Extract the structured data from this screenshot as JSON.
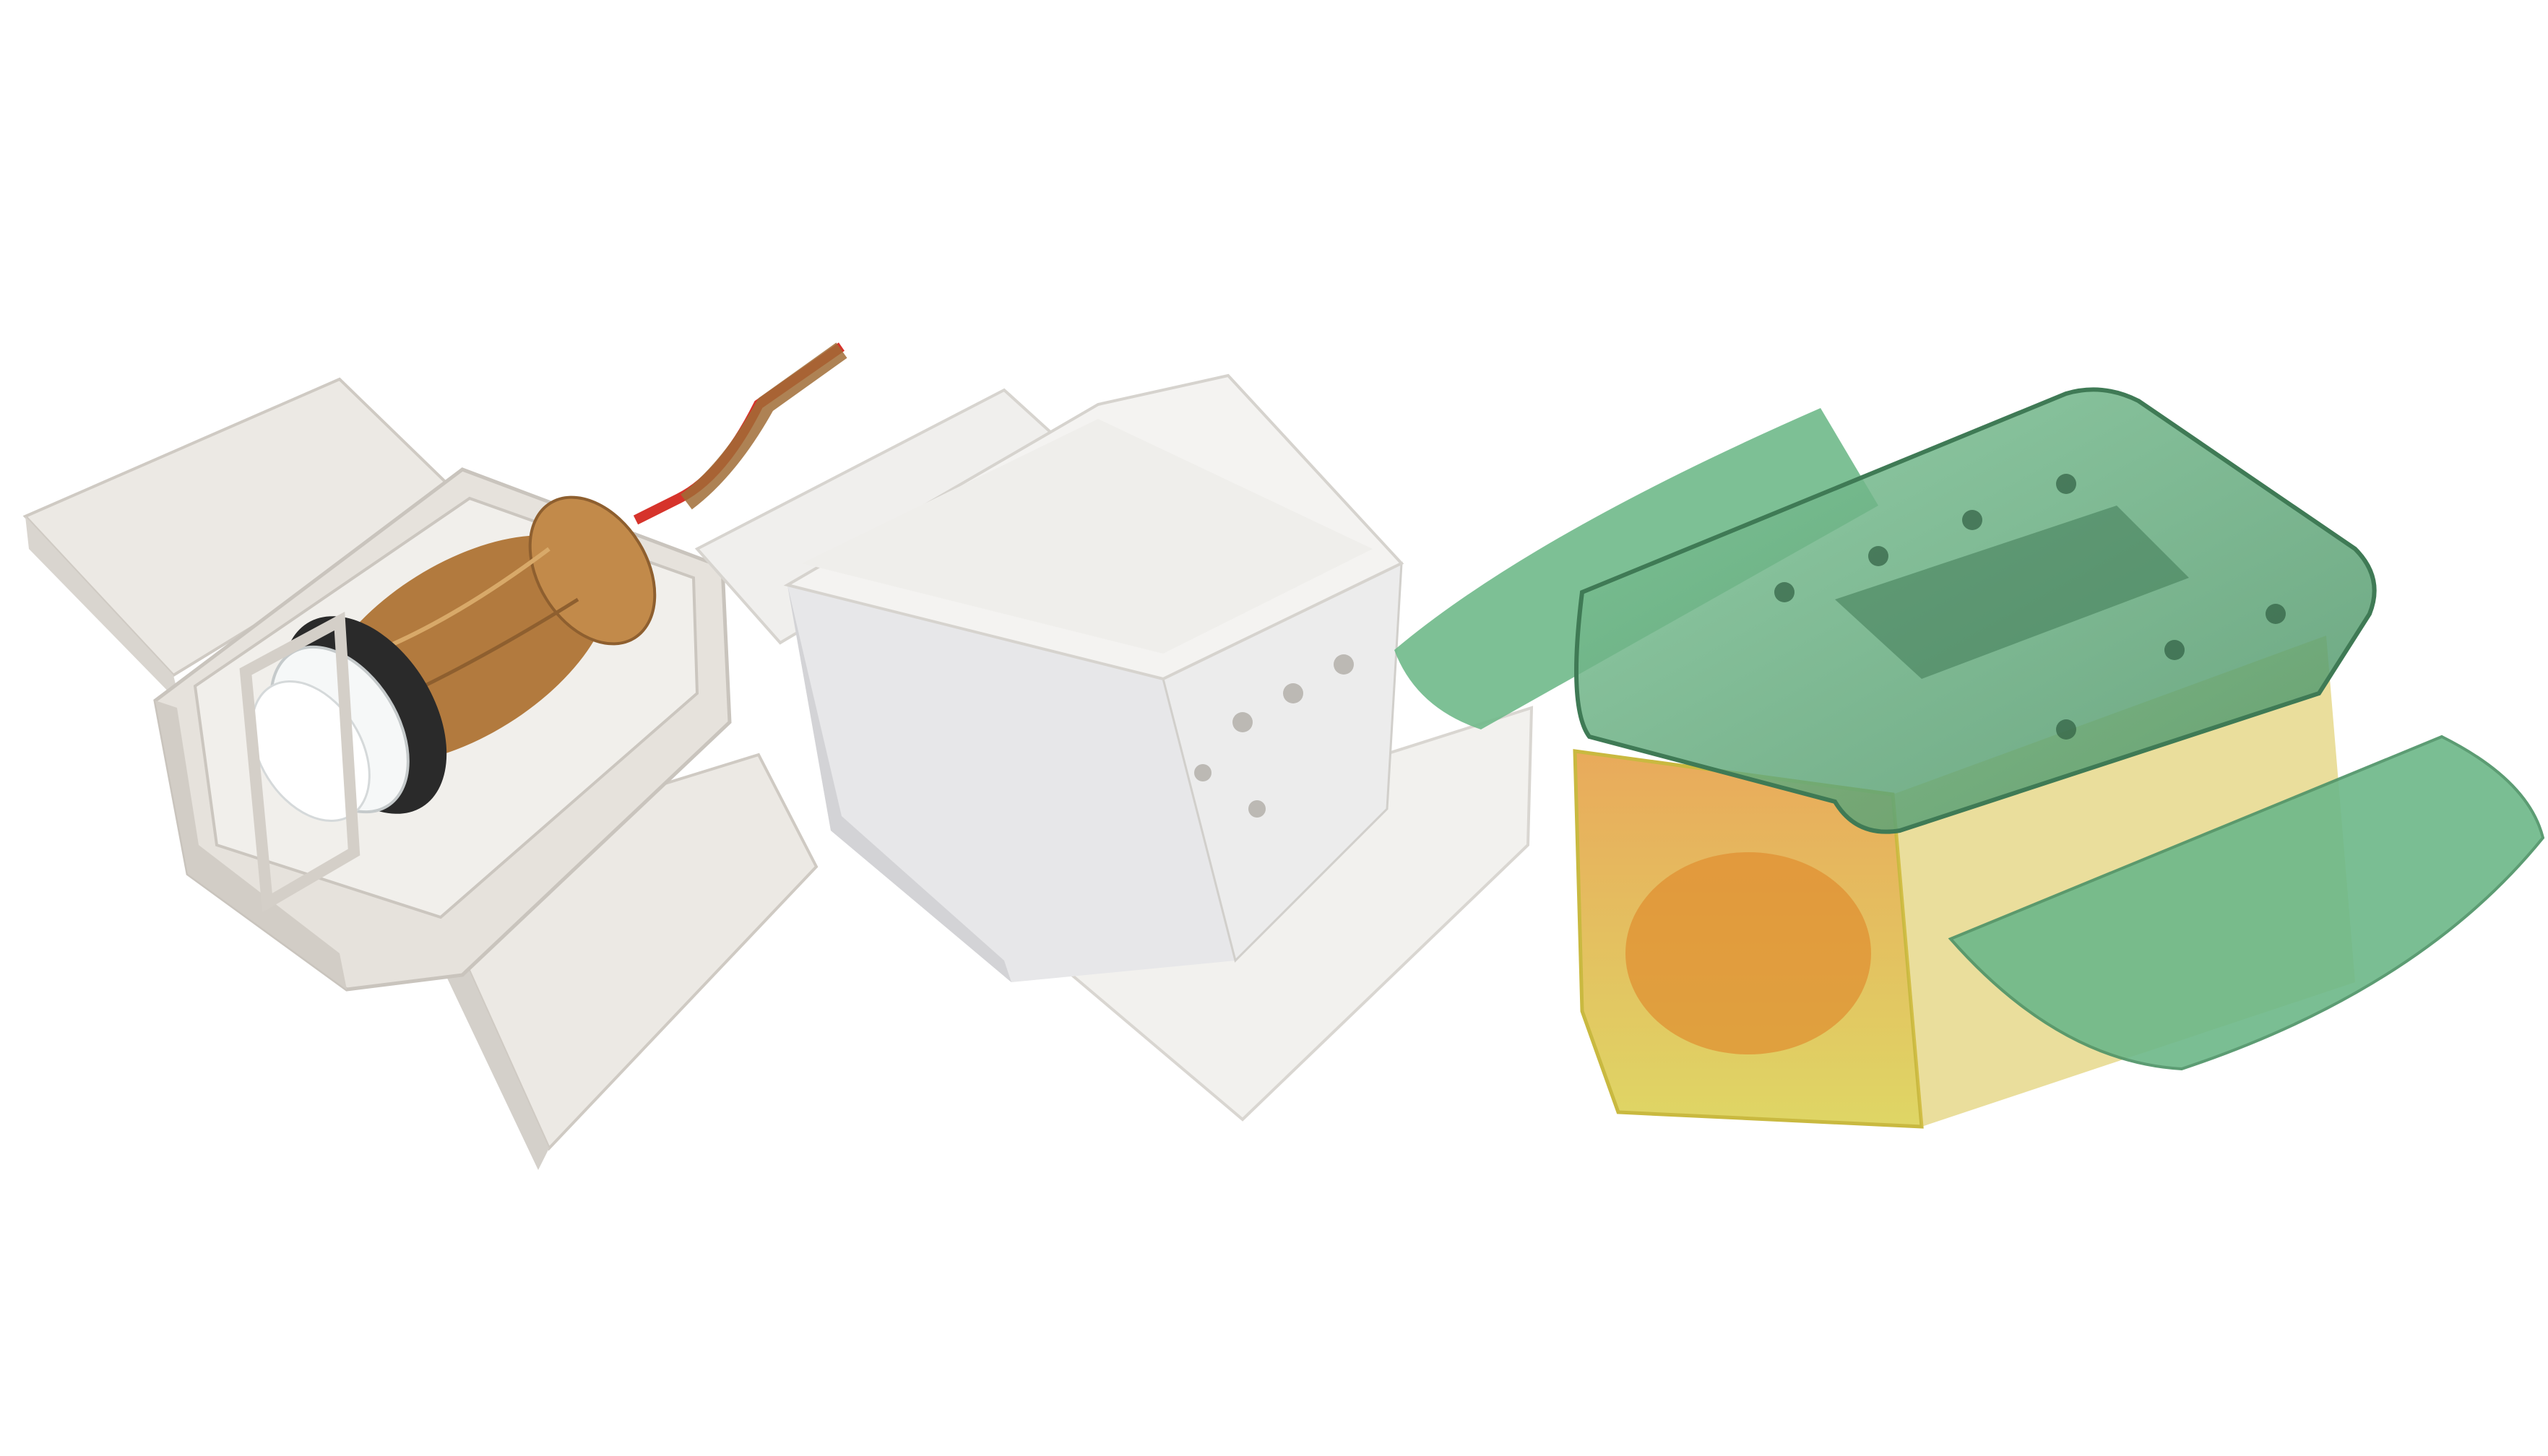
{
  "figure": {
    "panels": [
      {
        "id": "open",
        "name": "open-prototype-photo"
      },
      {
        "id": "closed",
        "name": "closed-prototype-photo"
      },
      {
        "id": "cad",
        "name": "translucent-cad-render"
      }
    ]
  },
  "colors": {
    "background": "#ffffff",
    "printed_plastic": "#e9e6e1",
    "printed_shadow": "#cfcac3",
    "tape_brown": "#b27a3e",
    "wire_red": "#d6332b",
    "motor_white": "#f5f7f7",
    "gasket_black": "#2a2a2a",
    "cad_green": "#6fb98a",
    "cad_green_dark": "#4f9468",
    "cad_orange": "#e59b3e",
    "cad_yellow": "#d9cf4a"
  }
}
